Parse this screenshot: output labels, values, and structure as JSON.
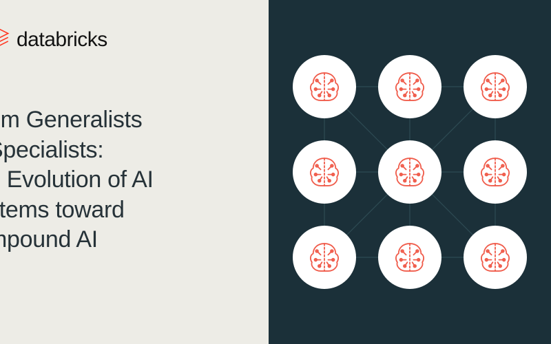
{
  "brand": "databricks",
  "tag": "g",
  "title_lines": [
    "om Generalists",
    " Specialists:",
    "e Evolution of AI",
    "stems toward",
    "mpound AI"
  ],
  "colors": {
    "left_bg": "#edece6",
    "right_bg": "#1b3039",
    "brand": "#121212",
    "accent": "#2596be",
    "title": "#263238",
    "node_fill": "#ffffff",
    "icon_stroke": "#f05c4b",
    "line_stroke": "#2e4b54"
  },
  "diagram": {
    "type": "network",
    "grid": 3,
    "node_diameter": 92,
    "spacing": 124,
    "line_width": 1.2,
    "nodes": [
      {
        "r": 0,
        "c": 0
      },
      {
        "r": 0,
        "c": 1
      },
      {
        "r": 0,
        "c": 2
      },
      {
        "r": 1,
        "c": 0
      },
      {
        "r": 1,
        "c": 1
      },
      {
        "r": 1,
        "c": 2
      },
      {
        "r": 2,
        "c": 0
      },
      {
        "r": 2,
        "c": 1
      },
      {
        "r": 2,
        "c": 2
      }
    ],
    "edges": [
      [
        0,
        1
      ],
      [
        1,
        2
      ],
      [
        3,
        4
      ],
      [
        4,
        5
      ],
      [
        6,
        7
      ],
      [
        7,
        8
      ],
      [
        0,
        3
      ],
      [
        3,
        6
      ],
      [
        1,
        4
      ],
      [
        4,
        7
      ],
      [
        2,
        5
      ],
      [
        5,
        8
      ],
      [
        0,
        4
      ],
      [
        2,
        4
      ],
      [
        6,
        4
      ],
      [
        8,
        4
      ]
    ]
  }
}
